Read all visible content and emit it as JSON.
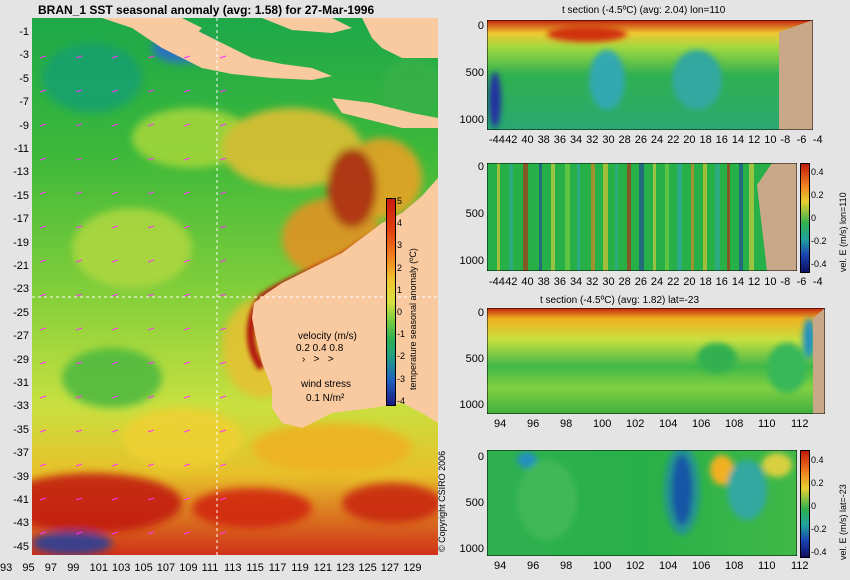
{
  "map": {
    "title": "BRAN_1  SST seasonal anomaly  (avg: 1.58)  for 27-Mar-1996",
    "lat_ticks": [
      "-1",
      "-3",
      "-5",
      "-7",
      "-9",
      "-11",
      "-13",
      "-15",
      "-17",
      "-19",
      "-21",
      "-23",
      "-25",
      "-27",
      "-29",
      "-31",
      "-33",
      "-35",
      "-37",
      "-39",
      "-41",
      "-43",
      "-45"
    ],
    "lon_ticks": [
      "93",
      "95",
      "97",
      "99",
      "101",
      "103",
      "105",
      "107",
      "109",
      "111",
      "113",
      "115",
      "117",
      "119",
      "121",
      "123",
      "125",
      "127",
      "129"
    ],
    "colorbar_ticks": [
      "5",
      "4",
      "3",
      "2",
      "1",
      "0",
      "-1",
      "-2",
      "-3",
      "-4"
    ],
    "colorbar_label": "temperature seasonal anomaly (ºC)",
    "velocity_label": "velocity (m/s)",
    "velocity_scale": "0.2 0.4 0.8",
    "wind_label": "wind stress",
    "wind_value": "0.1 N/m²",
    "copyright": "© Copyright CSIRO 2006",
    "colors": {
      "ocean": "#2ea84a",
      "land": "#f9c9a0",
      "warm": "#c81a10",
      "cold": "#1a2aa0",
      "vectors": "#ff30ff"
    }
  },
  "panels": {
    "p1": {
      "title": "t section (-4.5ºC) (avg: 2.04) lon=110",
      "y_ticks": [
        "0",
        "500",
        "1000"
      ],
      "x_ticks": [
        "-44",
        "42",
        "40",
        "38",
        "36",
        "34",
        "32",
        "30",
        "28",
        "26",
        "24",
        "22",
        "20",
        "18",
        "16",
        "14",
        "12",
        "10",
        "-8",
        "-6",
        "-4"
      ]
    },
    "p2": {
      "y_ticks": [
        "0",
        "500",
        "1000"
      ],
      "x_ticks": [
        "-44",
        "42",
        "40",
        "38",
        "36",
        "34",
        "32",
        "30",
        "28",
        "26",
        "24",
        "22",
        "20",
        "18",
        "16",
        "14",
        "12",
        "10",
        "-8",
        "-6",
        "-4"
      ],
      "cbar_ticks": [
        "0.4",
        "0.2",
        "0",
        "-0.2",
        "-0.4"
      ],
      "cbar_label": "vel. E (m/s) lon=110"
    },
    "p3": {
      "title": "t section (-4.5ºC) (avg: 1.82) lat=-23",
      "y_ticks": [
        "0",
        "500",
        "1000"
      ],
      "x_ticks": [
        "94",
        "96",
        "98",
        "100",
        "102",
        "104",
        "106",
        "108",
        "110",
        "112"
      ]
    },
    "p4": {
      "y_ticks": [
        "0",
        "500",
        "1000"
      ],
      "x_ticks": [
        "94",
        "96",
        "98",
        "100",
        "102",
        "104",
        "106",
        "108",
        "110",
        "112"
      ],
      "cbar_ticks": [
        "0.4",
        "0.2",
        "0",
        "-0.2",
        "-0.4"
      ],
      "cbar_label": "vel. E (m/s) lat=-23"
    }
  }
}
